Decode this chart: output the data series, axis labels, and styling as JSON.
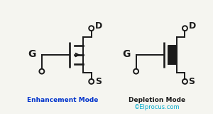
{
  "bg_color": "#f5f5f0",
  "line_color": "#1a1a1a",
  "enh_title_color": "#0033cc",
  "dep_title_color": "#1a1a1a",
  "copyright_color": "#00aacc",
  "gate_label": "G",
  "drain_label": "D",
  "source_label": "S",
  "enh_title": "Enhancement Mode",
  "dep_title": "Depletion Mode",
  "copyright": "©Elprocus.com",
  "title_fontsize": 6.5,
  "label_fontsize": 9,
  "copyright_fontsize": 6
}
